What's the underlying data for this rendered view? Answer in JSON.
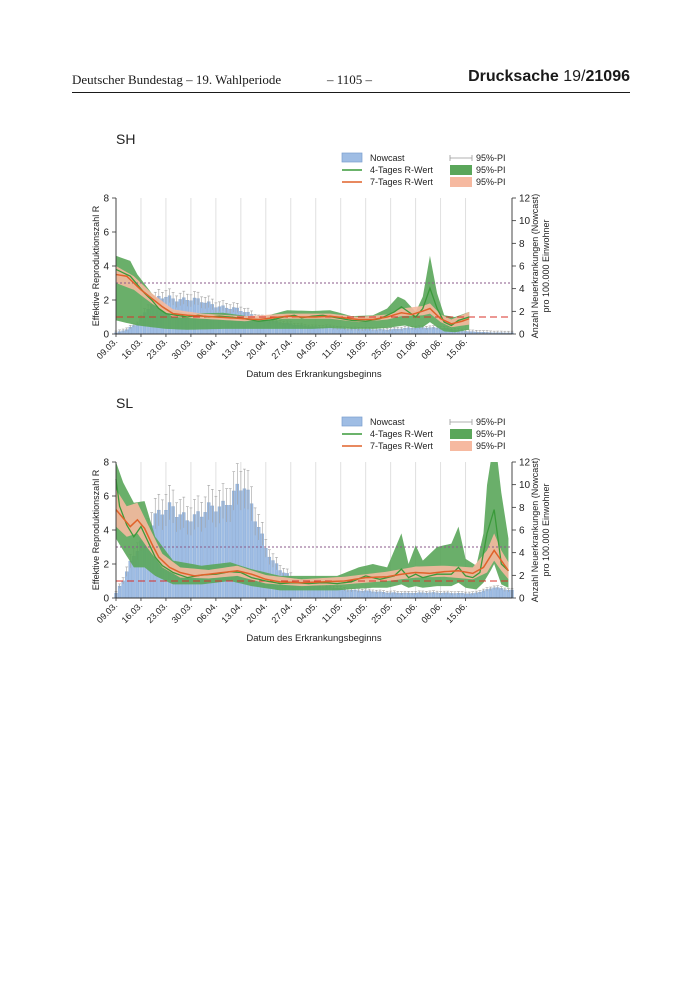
{
  "header": {
    "left": "Deutscher Bundestag – 19. Wahlperiode",
    "center": "– 1105 –",
    "right_prefix": "Drucksache",
    "right_number_a": "19/",
    "right_number_b": "21096"
  },
  "legend": {
    "nowcast": "Nowcast",
    "r4": "4-Tages R-Wert",
    "r7": "7-Tages R-Wert",
    "pi_bar": "95%-PI",
    "pi_r4": "95%-PI",
    "pi_r7": "95%-PI"
  },
  "colors": {
    "bar": "#9fbde4",
    "bar_edge": "#7a9fcf",
    "r4": "#3a9a3a",
    "r4_band": "#5aa65a",
    "r7": "#e0622a",
    "r7_band": "#f6b9a0",
    "threshold_red": "#d9302a",
    "threshold_purple": "#8a5a8a"
  },
  "chart_data": [
    {
      "type": "bar",
      "id": "sh",
      "title": "SH",
      "xlabel": "Datum des Erkrankungsbeginns",
      "ylabel": "Effektive Reproduktionszahl R",
      "y2label_1": "Anzahl Neuerkrankungen (Nowcast)",
      "y2label_2": "pro 100.000 Einwohner",
      "ylim": [
        0,
        8
      ],
      "y2lim": [
        0,
        12
      ],
      "yticks": [
        "0",
        "2",
        "4",
        "6",
        "8"
      ],
      "y2ticks": [
        "0",
        "2",
        "4",
        "6",
        "8",
        "10",
        "12"
      ],
      "x_range": [
        0,
        111
      ],
      "x_ticks": [
        "09.03.",
        "16.03.",
        "23.03.",
        "30.03.",
        "06.04.",
        "13.04.",
        "20.04.",
        "27.04.",
        "04.05.",
        "11.05.",
        "18.05.",
        "25.05.",
        "01.06.",
        "08.06.",
        "15.06."
      ],
      "thresholds": {
        "r_one": 1,
        "purple": 3
      },
      "nowcast_keys": [
        [
          0,
          0.1
        ],
        [
          3,
          0.4
        ],
        [
          6,
          1.0
        ],
        [
          8,
          1.8
        ],
        [
          10,
          2.6
        ],
        [
          12,
          3.1
        ],
        [
          14,
          3.3
        ],
        [
          17,
          3.2
        ],
        [
          21,
          3.0
        ],
        [
          24,
          2.8
        ],
        [
          28,
          2.6
        ],
        [
          32,
          2.3
        ],
        [
          36,
          1.9
        ],
        [
          40,
          1.5
        ],
        [
          44,
          1.1
        ],
        [
          48,
          0.9
        ],
        [
          52,
          0.8
        ],
        [
          56,
          0.6
        ],
        [
          60,
          0.6
        ],
        [
          64,
          0.5
        ],
        [
          70,
          0.4
        ],
        [
          76,
          0.4
        ],
        [
          82,
          0.5
        ],
        [
          88,
          0.6
        ],
        [
          92,
          0.5
        ],
        [
          96,
          0.3
        ],
        [
          100,
          0.2
        ],
        [
          106,
          0.1
        ],
        [
          111,
          0.1
        ]
      ],
      "r4_keys": [
        [
          0,
          3.8
        ],
        [
          2,
          3.6
        ],
        [
          4,
          3.4
        ],
        [
          6,
          2.9
        ],
        [
          8,
          2.4
        ],
        [
          10,
          2.0
        ],
        [
          12,
          1.5
        ],
        [
          14,
          1.2
        ],
        [
          17,
          1.1
        ],
        [
          20,
          1.0
        ],
        [
          23,
          1.1
        ],
        [
          26,
          1.0
        ],
        [
          29,
          1.05
        ],
        [
          32,
          1.0
        ],
        [
          36,
          0.9
        ],
        [
          40,
          0.75
        ],
        [
          44,
          0.85
        ],
        [
          48,
          1.05
        ],
        [
          50,
          1.1
        ],
        [
          52,
          0.95
        ],
        [
          55,
          1.05
        ],
        [
          58,
          1.1
        ],
        [
          62,
          0.95
        ],
        [
          66,
          0.8
        ],
        [
          70,
          0.75
        ],
        [
          74,
          0.9
        ],
        [
          78,
          1.3
        ],
        [
          80,
          1.6
        ],
        [
          82,
          1.3
        ],
        [
          84,
          1.0
        ],
        [
          86,
          1.5
        ],
        [
          88,
          2.7
        ],
        [
          90,
          1.5
        ],
        [
          92,
          0.7
        ],
        [
          94,
          0.5
        ],
        [
          96,
          0.8
        ],
        [
          99,
          1.0
        ]
      ],
      "r4_band_keys": [
        [
          0,
          0.8,
          4.6
        ],
        [
          4,
          0.6,
          4.3
        ],
        [
          6,
          0.5,
          3.5
        ],
        [
          10,
          0.4,
          2.4
        ],
        [
          14,
          0.3,
          1.5
        ],
        [
          20,
          0.25,
          1.2
        ],
        [
          30,
          0.3,
          1.25
        ],
        [
          40,
          0.3,
          0.95
        ],
        [
          48,
          0.3,
          1.4
        ],
        [
          55,
          0.3,
          1.35
        ],
        [
          60,
          0.35,
          1.4
        ],
        [
          66,
          0.3,
          1.05
        ],
        [
          72,
          0.3,
          1.1
        ],
        [
          76,
          0.35,
          1.5
        ],
        [
          79,
          0.45,
          2.2
        ],
        [
          81,
          0.5,
          2.0
        ],
        [
          84,
          0.35,
          1.3
        ],
        [
          86,
          0.4,
          2.2
        ],
        [
          88,
          0.7,
          4.6
        ],
        [
          90,
          0.4,
          2.4
        ],
        [
          92,
          0.15,
          1.1
        ],
        [
          95,
          0.1,
          1.0
        ],
        [
          99,
          0.25,
          1.3
        ]
      ],
      "r7_keys": [
        [
          0,
          3.5
        ],
        [
          3,
          3.4
        ],
        [
          5,
          3.0
        ],
        [
          7,
          2.6
        ],
        [
          10,
          2.1
        ],
        [
          13,
          1.6
        ],
        [
          16,
          1.2
        ],
        [
          20,
          1.1
        ],
        [
          24,
          1.05
        ],
        [
          28,
          1.0
        ],
        [
          32,
          0.95
        ],
        [
          36,
          0.9
        ],
        [
          40,
          0.85
        ],
        [
          44,
          0.95
        ],
        [
          48,
          1.05
        ],
        [
          52,
          1.0
        ],
        [
          56,
          1.0
        ],
        [
          60,
          1.05
        ],
        [
          64,
          0.95
        ],
        [
          68,
          0.85
        ],
        [
          72,
          0.85
        ],
        [
          76,
          1.0
        ],
        [
          80,
          1.25
        ],
        [
          83,
          1.15
        ],
        [
          86,
          1.35
        ],
        [
          88,
          1.5
        ],
        [
          91,
          0.9
        ],
        [
          94,
          0.6
        ],
        [
          97,
          0.75
        ],
        [
          99,
          0.9
        ]
      ],
      "r7_band_keys": [
        [
          0,
          3.0,
          4.0
        ],
        [
          5,
          2.6,
          3.4
        ],
        [
          10,
          1.8,
          2.4
        ],
        [
          16,
          1.0,
          1.45
        ],
        [
          24,
          0.9,
          1.2
        ],
        [
          36,
          0.75,
          1.05
        ],
        [
          48,
          0.9,
          1.2
        ],
        [
          60,
          0.9,
          1.2
        ],
        [
          68,
          0.7,
          1.0
        ],
        [
          76,
          0.85,
          1.15
        ],
        [
          80,
          1.05,
          1.5
        ],
        [
          86,
          1.1,
          1.65
        ],
        [
          88,
          1.2,
          1.8
        ],
        [
          91,
          0.7,
          1.15
        ],
        [
          94,
          0.4,
          0.85
        ],
        [
          99,
          0.55,
          1.3
        ]
      ]
    },
    {
      "type": "bar",
      "id": "sl",
      "title": "SL",
      "xlabel": "Datum des Erkrankungsbeginns",
      "ylabel": "Effektive Reproduktionszahl R",
      "y2label_1": "Anzahl Neuerkrankungen (Nowcast)",
      "y2label_2": "pro 100.000 Einwohner",
      "ylim": [
        0,
        8
      ],
      "y2lim": [
        0,
        12
      ],
      "yticks": [
        "0",
        "2",
        "4",
        "6",
        "8"
      ],
      "y2ticks": [
        "0",
        "2",
        "4",
        "6",
        "8",
        "10",
        "12"
      ],
      "x_range": [
        0,
        111
      ],
      "x_ticks": [
        "09.03.",
        "16.03.",
        "23.03.",
        "30.03.",
        "06.04.",
        "13.04.",
        "20.04.",
        "27.04.",
        "04.05.",
        "11.05.",
        "18.05.",
        "25.05.",
        "01.06.",
        "08.06.",
        "15.06."
      ],
      "thresholds": {
        "r_one": 1,
        "purple": 3
      },
      "nowcast_keys": [
        [
          0,
          0.4
        ],
        [
          2,
          1.6
        ],
        [
          4,
          3.2
        ],
        [
          6,
          4.6
        ],
        [
          8,
          5.6
        ],
        [
          10,
          6.4
        ],
        [
          12,
          7.2
        ],
        [
          14,
          7.9
        ],
        [
          16,
          8.4
        ],
        [
          18,
          7.6
        ],
        [
          20,
          7.0
        ],
        [
          22,
          6.8
        ],
        [
          24,
          7.2
        ],
        [
          26,
          8.0
        ],
        [
          28,
          8.5
        ],
        [
          30,
          8.4
        ],
        [
          32,
          8.6
        ],
        [
          34,
          9.2
        ],
        [
          36,
          9.6
        ],
        [
          38,
          8.2
        ],
        [
          40,
          6.6
        ],
        [
          42,
          4.6
        ],
        [
          44,
          3.2
        ],
        [
          46,
          2.4
        ],
        [
          48,
          2.0
        ],
        [
          50,
          1.6
        ],
        [
          54,
          1.3
        ],
        [
          58,
          1.0
        ],
        [
          62,
          0.9
        ],
        [
          66,
          0.7
        ],
        [
          70,
          0.6
        ],
        [
          76,
          0.5
        ],
        [
          82,
          0.4
        ],
        [
          88,
          0.5
        ],
        [
          94,
          0.4
        ],
        [
          100,
          0.4
        ],
        [
          104,
          0.7
        ],
        [
          106,
          0.9
        ],
        [
          108,
          0.8
        ],
        [
          111,
          0.7
        ]
      ],
      "r4_keys": [
        [
          0,
          7.0
        ],
        [
          1,
          5.4
        ],
        [
          3,
          4.3
        ],
        [
          5,
          3.6
        ],
        [
          7,
          4.2
        ],
        [
          9,
          3.3
        ],
        [
          11,
          2.4
        ],
        [
          13,
          1.9
        ],
        [
          16,
          1.5
        ],
        [
          20,
          1.2
        ],
        [
          24,
          1.35
        ],
        [
          28,
          1.4
        ],
        [
          32,
          1.55
        ],
        [
          35,
          1.5
        ],
        [
          38,
          1.2
        ],
        [
          42,
          1.0
        ],
        [
          46,
          0.85
        ],
        [
          50,
          0.9
        ],
        [
          54,
          0.85
        ],
        [
          58,
          0.9
        ],
        [
          62,
          0.85
        ],
        [
          66,
          0.95
        ],
        [
          70,
          1.3
        ],
        [
          74,
          1.1
        ],
        [
          78,
          1.3
        ],
        [
          80,
          1.7
        ],
        [
          82,
          1.2
        ],
        [
          84,
          1.4
        ],
        [
          86,
          1.2
        ],
        [
          90,
          1.4
        ],
        [
          94,
          1.4
        ],
        [
          96,
          1.8
        ],
        [
          98,
          1.3
        ],
        [
          100,
          1.2
        ],
        [
          102,
          1.5
        ],
        [
          104,
          3.8
        ],
        [
          106,
          5.2
        ],
        [
          108,
          2.0
        ],
        [
          110,
          1.6
        ]
      ],
      "r4_band_keys": [
        [
          0,
          3.5,
          8.0
        ],
        [
          2,
          2.8,
          6.8
        ],
        [
          5,
          1.8,
          5.6
        ],
        [
          8,
          1.8,
          5.7
        ],
        [
          11,
          1.3,
          3.6
        ],
        [
          16,
          0.8,
          2.2
        ],
        [
          24,
          0.8,
          1.9
        ],
        [
          32,
          1.0,
          2.1
        ],
        [
          38,
          0.7,
          1.7
        ],
        [
          46,
          0.45,
          1.3
        ],
        [
          54,
          0.45,
          1.3
        ],
        [
          62,
          0.45,
          1.3
        ],
        [
          68,
          0.55,
          1.8
        ],
        [
          72,
          0.6,
          2.0
        ],
        [
          76,
          0.6,
          1.8
        ],
        [
          80,
          0.8,
          3.8
        ],
        [
          82,
          0.6,
          2.0
        ],
        [
          84,
          0.7,
          3.1
        ],
        [
          86,
          0.6,
          2.2
        ],
        [
          90,
          0.7,
          3.0
        ],
        [
          94,
          0.7,
          3.2
        ],
        [
          96,
          0.9,
          4.2
        ],
        [
          98,
          0.6,
          2.3
        ],
        [
          101,
          0.5,
          1.9
        ],
        [
          103,
          0.9,
          3.8
        ],
        [
          105,
          1.6,
          9.5
        ],
        [
          106,
          2.0,
          12.5
        ],
        [
          108,
          0.8,
          6.2
        ],
        [
          110,
          0.6,
          3.5
        ]
      ],
      "r7_keys": [
        [
          0,
          5.2
        ],
        [
          2,
          4.7
        ],
        [
          4,
          4.2
        ],
        [
          6,
          4.6
        ],
        [
          8,
          4.1
        ],
        [
          10,
          3.2
        ],
        [
          12,
          2.4
        ],
        [
          15,
          1.8
        ],
        [
          18,
          1.5
        ],
        [
          22,
          1.3
        ],
        [
          26,
          1.4
        ],
        [
          30,
          1.5
        ],
        [
          34,
          1.6
        ],
        [
          38,
          1.4
        ],
        [
          42,
          1.1
        ],
        [
          46,
          0.95
        ],
        [
          52,
          0.9
        ],
        [
          58,
          0.95
        ],
        [
          64,
          1.0
        ],
        [
          70,
          1.2
        ],
        [
          76,
          1.25
        ],
        [
          80,
          1.4
        ],
        [
          84,
          1.5
        ],
        [
          88,
          1.45
        ],
        [
          92,
          1.55
        ],
        [
          96,
          1.6
        ],
        [
          100,
          1.45
        ],
        [
          103,
          1.8
        ],
        [
          106,
          2.8
        ],
        [
          108,
          2.2
        ],
        [
          110,
          1.6
        ]
      ],
      "r7_band_keys": [
        [
          0,
          4.2,
          6.4
        ],
        [
          3,
          3.6,
          5.4
        ],
        [
          6,
          3.8,
          5.6
        ],
        [
          9,
          2.9,
          4.3
        ],
        [
          13,
          1.8,
          2.6
        ],
        [
          18,
          1.2,
          1.8
        ],
        [
          26,
          1.15,
          1.65
        ],
        [
          34,
          1.3,
          1.9
        ],
        [
          42,
          0.85,
          1.35
        ],
        [
          52,
          0.7,
          1.1
        ],
        [
          64,
          0.8,
          1.25
        ],
        [
          76,
          1.0,
          1.55
        ],
        [
          84,
          1.2,
          1.85
        ],
        [
          92,
          1.25,
          1.9
        ],
        [
          100,
          1.1,
          1.8
        ],
        [
          104,
          1.5,
          2.8
        ],
        [
          106,
          2.2,
          3.8
        ],
        [
          108,
          1.6,
          2.8
        ],
        [
          110,
          1.1,
          2.1
        ]
      ]
    }
  ]
}
